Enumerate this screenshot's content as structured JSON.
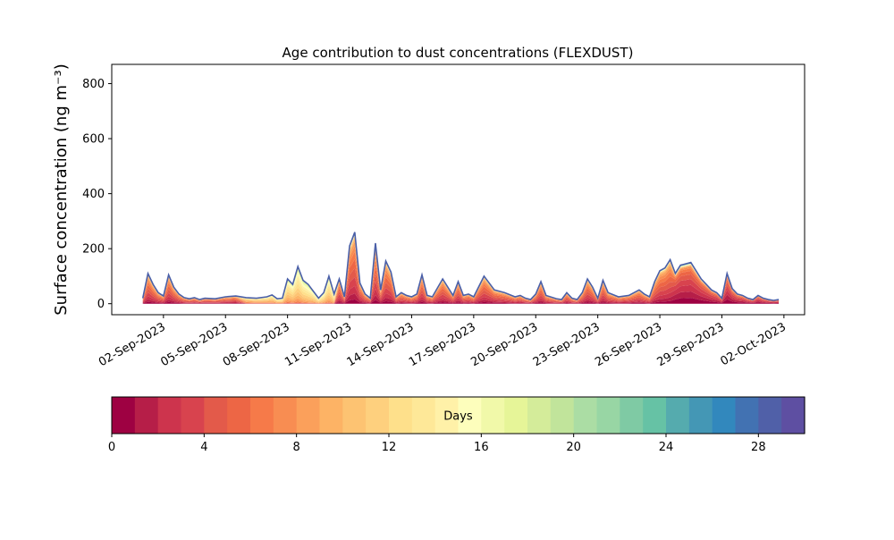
{
  "chart_data": {
    "type": "area",
    "title": "Age contribution to dust concentrations (FLEXDUST)",
    "ylabel": "Surface concentration (ng m⁻³)",
    "xlabel": "",
    "ylim": [
      -40,
      870
    ],
    "yticks": [
      0,
      200,
      400,
      600,
      800
    ],
    "x_range": [
      "2023-08-30T12:00",
      "2023-10-03T00:00"
    ],
    "xticks": [
      "02-Sep-2023",
      "05-Sep-2023",
      "08-Sep-2023",
      "11-Sep-2023",
      "14-Sep-2023",
      "17-Sep-2023",
      "20-Sep-2023",
      "23-Sep-2023",
      "26-Sep-2023",
      "29-Sep-2023",
      "02-Oct-2023"
    ],
    "stack_note": "stacked by age bin (0-30 days); top line is the total",
    "series_total": {
      "x": [
        "2023-09-01T00:00",
        "2023-09-01T06:00",
        "2023-09-01T12:00",
        "2023-09-01T18:00",
        "2023-09-02T00:00",
        "2023-09-02T06:00",
        "2023-09-02T12:00",
        "2023-09-02T18:00",
        "2023-09-03T00:00",
        "2023-09-03T06:00",
        "2023-09-03T12:00",
        "2023-09-03T18:00",
        "2023-09-04T00:00",
        "2023-09-04T12:00",
        "2023-09-05T00:00",
        "2023-09-05T12:00",
        "2023-09-06T00:00",
        "2023-09-06T12:00",
        "2023-09-07T00:00",
        "2023-09-07T06:00",
        "2023-09-07T12:00",
        "2023-09-07T18:00",
        "2023-09-08T00:00",
        "2023-09-08T06:00",
        "2023-09-08T12:00",
        "2023-09-08T18:00",
        "2023-09-09T00:00",
        "2023-09-09T06:00",
        "2023-09-09T12:00",
        "2023-09-09T18:00",
        "2023-09-10T00:00",
        "2023-09-10T06:00",
        "2023-09-10T12:00",
        "2023-09-10T18:00",
        "2023-09-11T00:00",
        "2023-09-11T06:00",
        "2023-09-11T12:00",
        "2023-09-11T18:00",
        "2023-09-12T00:00",
        "2023-09-12T06:00",
        "2023-09-12T12:00",
        "2023-09-12T18:00",
        "2023-09-13T00:00",
        "2023-09-13T06:00",
        "2023-09-13T12:00",
        "2023-09-13T18:00",
        "2023-09-14T00:00",
        "2023-09-14T06:00",
        "2023-09-14T12:00",
        "2023-09-14T18:00",
        "2023-09-15T00:00",
        "2023-09-15T12:00",
        "2023-09-16T00:00",
        "2023-09-16T06:00",
        "2023-09-16T12:00",
        "2023-09-16T18:00",
        "2023-09-17T00:00",
        "2023-09-17T12:00",
        "2023-09-18T00:00",
        "2023-09-18T12:00",
        "2023-09-19T00:00",
        "2023-09-19T06:00",
        "2023-09-19T12:00",
        "2023-09-19T18:00",
        "2023-09-20T00:00",
        "2023-09-20T06:00",
        "2023-09-20T12:00",
        "2023-09-21T00:00",
        "2023-09-21T06:00",
        "2023-09-21T12:00",
        "2023-09-21T18:00",
        "2023-09-22T00:00",
        "2023-09-22T06:00",
        "2023-09-22T12:00",
        "2023-09-22T18:00",
        "2023-09-23T00:00",
        "2023-09-23T06:00",
        "2023-09-23T12:00",
        "2023-09-24T00:00",
        "2023-09-24T12:00",
        "2023-09-25T00:00",
        "2023-09-25T06:00",
        "2023-09-25T12:00",
        "2023-09-25T18:00",
        "2023-09-26T00:00",
        "2023-09-26T06:00",
        "2023-09-26T12:00",
        "2023-09-26T18:00",
        "2023-09-27T00:00",
        "2023-09-27T12:00",
        "2023-09-28T00:00",
        "2023-09-28T12:00",
        "2023-09-28T18:00",
        "2023-09-29T00:00",
        "2023-09-29T06:00",
        "2023-09-29T12:00",
        "2023-09-29T18:00",
        "2023-09-30T00:00",
        "2023-09-30T06:00",
        "2023-09-30T12:00",
        "2023-09-30T18:00",
        "2023-10-01T00:00",
        "2023-10-01T06:00",
        "2023-10-01T12:00",
        "2023-10-01T18:00"
      ],
      "y": [
        20,
        110,
        70,
        40,
        28,
        105,
        60,
        35,
        22,
        18,
        22,
        15,
        20,
        18,
        25,
        28,
        22,
        20,
        25,
        32,
        18,
        20,
        90,
        70,
        135,
        85,
        70,
        45,
        20,
        40,
        100,
        35,
        90,
        25,
        210,
        260,
        75,
        35,
        20,
        220,
        50,
        155,
        115,
        25,
        40,
        30,
        25,
        35,
        105,
        30,
        25,
        90,
        30,
        80,
        30,
        35,
        25,
        100,
        50,
        40,
        25,
        30,
        20,
        15,
        35,
        80,
        30,
        18,
        15,
        40,
        20,
        15,
        40,
        90,
        60,
        20,
        85,
        40,
        25,
        30,
        50,
        35,
        25,
        80,
        120,
        130,
        160,
        110,
        140,
        150,
        90,
        50,
        40,
        20,
        110,
        55,
        35,
        30,
        20,
        15,
        30,
        20,
        15,
        12,
        15
      ]
    },
    "colorbar": {
      "label": "Days",
      "range": [
        0,
        30
      ],
      "bins": 30,
      "ticks": [
        0,
        4,
        8,
        12,
        16,
        20,
        24,
        28
      ],
      "colors": [
        "#9e0142",
        "#b61e48",
        "#cd344d",
        "#d8434e",
        "#e35a4a",
        "#ed6645",
        "#f67a49",
        "#f88d52",
        "#fba05b",
        "#fdb365",
        "#fdc372",
        "#fed07e",
        "#fee08b",
        "#fee898",
        "#fff1a8",
        "#fdfebc",
        "#f1f9a9",
        "#e6f598",
        "#d4ec9a",
        "#c1e49b",
        "#abdda4",
        "#98d6a4",
        "#7fcaa4",
        "#66c2a5",
        "#55abae",
        "#4497b5",
        "#3288bd",
        "#4272b2",
        "#5060a8",
        "#5e4fa2"
      ]
    }
  }
}
